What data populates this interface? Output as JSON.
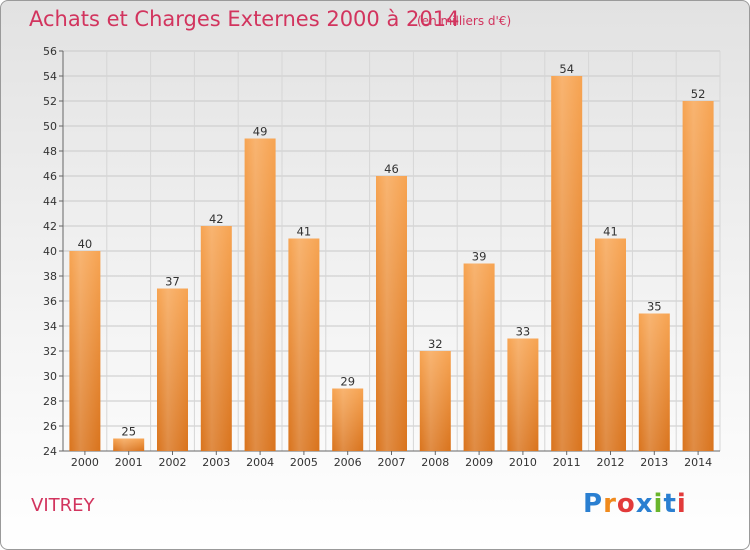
{
  "title": "Achats et Charges Externes 2000 à 2014",
  "subtitle": "(en milliers d'€)",
  "location": "VITREY",
  "logo": {
    "text": "Proxiti",
    "letters": [
      "P",
      "r",
      "o",
      "x",
      "i",
      "t",
      "i"
    ],
    "colors": [
      "#2a7fd1",
      "#f08a1c",
      "#e23a3a",
      "#2a7fd1",
      "#69b52c",
      "#2a7fd1",
      "#e23a3a"
    ]
  },
  "chart_data": {
    "type": "bar",
    "categories": [
      "2000",
      "2001",
      "2002",
      "2003",
      "2004",
      "2005",
      "2006",
      "2007",
      "2008",
      "2009",
      "2010",
      "2011",
      "2012",
      "2013",
      "2014"
    ],
    "values": [
      40,
      25,
      37,
      42,
      49,
      41,
      29,
      46,
      32,
      39,
      33,
      54,
      41,
      35,
      52
    ],
    "ylim": [
      24,
      56
    ],
    "yticks": [
      24,
      26,
      28,
      30,
      32,
      34,
      36,
      38,
      40,
      42,
      44,
      46,
      48,
      50,
      52,
      54,
      56
    ],
    "grid": true,
    "bar_color": "#f08a2c"
  }
}
